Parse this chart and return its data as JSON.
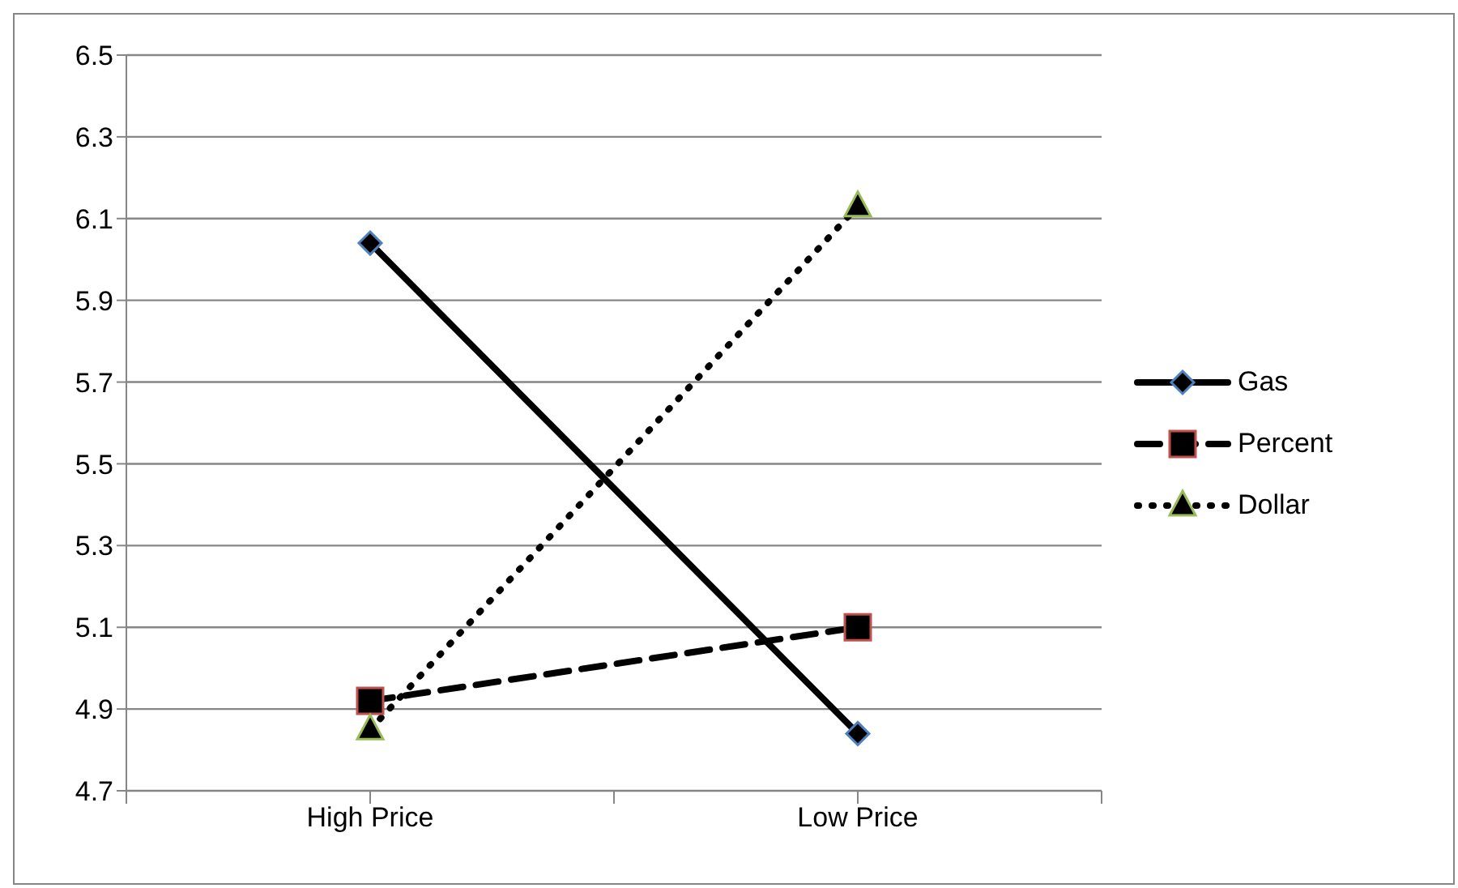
{
  "chart_data": {
    "type": "line",
    "categories": [
      "High Price",
      "Low Price"
    ],
    "series": [
      {
        "name": "Gas",
        "color": "#000000",
        "values": [
          6.04,
          4.84
        ],
        "marker": "diamond",
        "line_style": "solid"
      },
      {
        "name": "Percent",
        "color": "#000000",
        "values": [
          4.92,
          5.1
        ],
        "marker": "square",
        "line_style": "dashed"
      },
      {
        "name": "Dollar",
        "color": "#000000",
        "values": [
          4.85,
          6.13
        ],
        "marker": "triangle",
        "line_style": "dotted"
      }
    ],
    "ylim": [
      4.7,
      6.5
    ],
    "yticks": [
      4.7,
      4.9,
      5.1,
      5.3,
      5.5,
      5.7,
      5.9,
      6.1,
      6.3,
      6.5
    ],
    "grid": "y",
    "legend": "right"
  }
}
